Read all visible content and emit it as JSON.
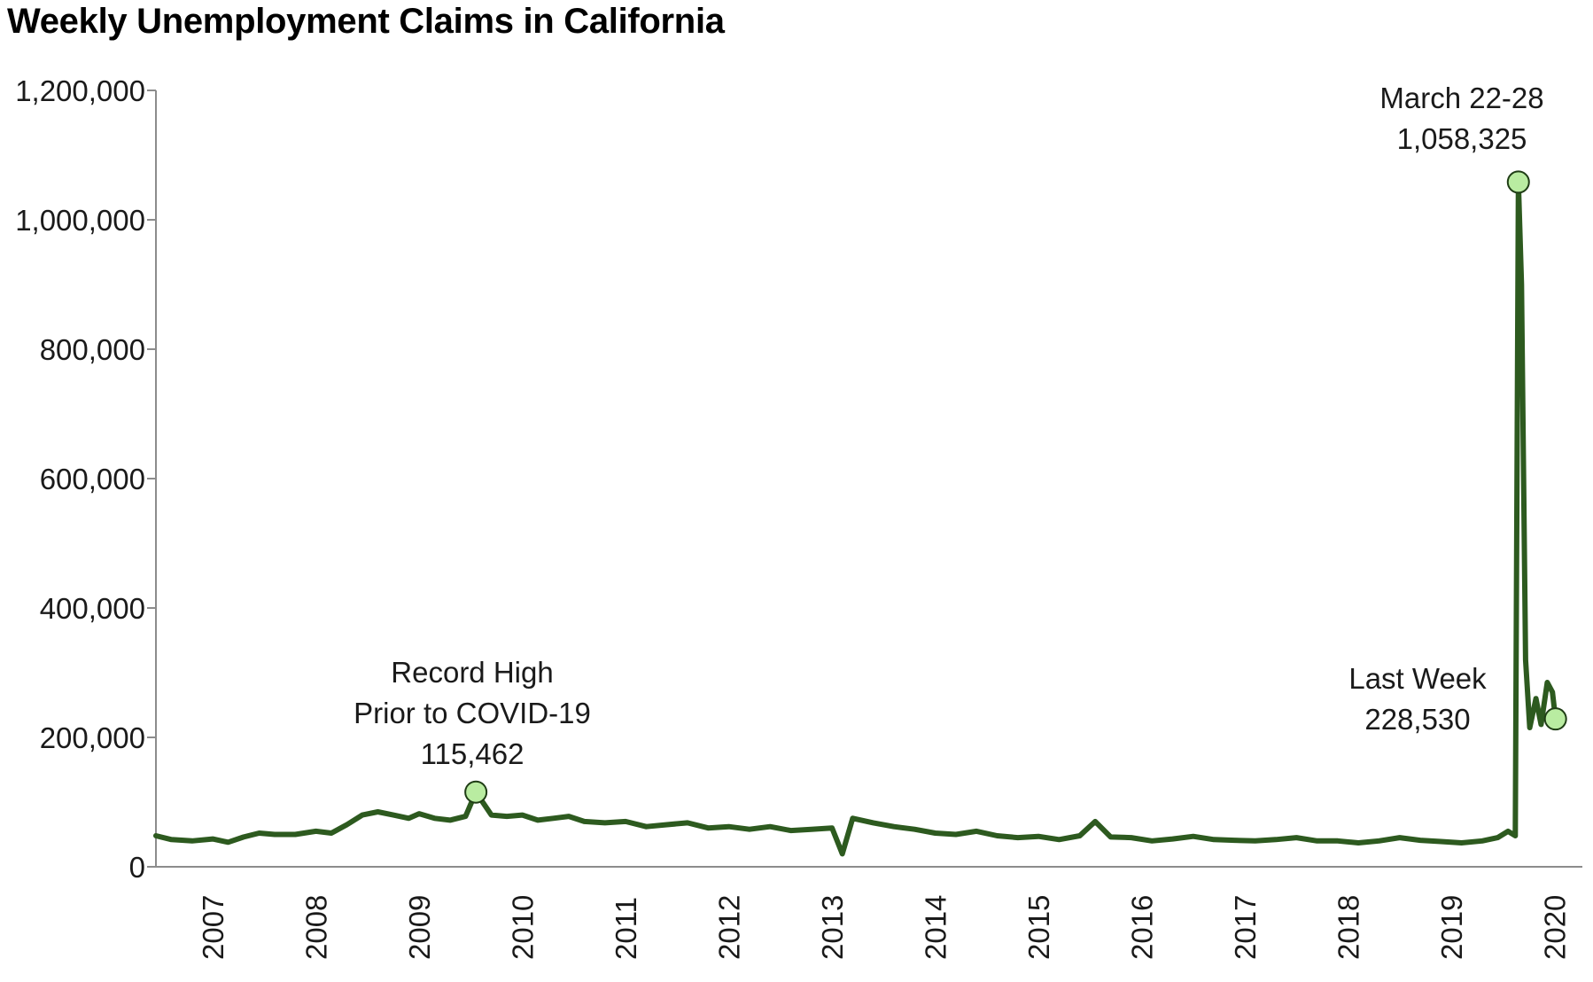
{
  "title": "Weekly Unemployment Claims in California",
  "colors": {
    "line": "#2d5a1f",
    "marker_fill": "#b9eca1",
    "marker_stroke": "#1f3d15",
    "axis": "#8c8c8c"
  },
  "chart_data": {
    "type": "line",
    "title": "Weekly Unemployment Claims in California",
    "xlabel": "",
    "ylabel": "",
    "ylim": [
      0,
      1200000
    ],
    "yticks": [
      0,
      200000,
      400000,
      600000,
      800000,
      1000000,
      1200000
    ],
    "ytick_labels": [
      "0",
      "200,000",
      "400,000",
      "600,000",
      "800,000",
      "1,000,000",
      "1,200,000"
    ],
    "xlim": [
      2006.45,
      2020.27
    ],
    "xticks": [
      2007,
      2008,
      2009,
      2010,
      2011,
      2012,
      2013,
      2014,
      2015,
      2016,
      2017,
      2018,
      2019,
      2020
    ],
    "xtick_labels": [
      "2007",
      "2008",
      "2009",
      "2010",
      "2011",
      "2012",
      "2013",
      "2014",
      "2015",
      "2016",
      "2017",
      "2018",
      "2019",
      "2020"
    ],
    "grid": false,
    "legend": "none",
    "series": [
      {
        "points": [
          [
            2006.45,
            48000
          ],
          [
            2006.6,
            42000
          ],
          [
            2006.8,
            40000
          ],
          [
            2007.0,
            43000
          ],
          [
            2007.15,
            38000
          ],
          [
            2007.3,
            46000
          ],
          [
            2007.45,
            52000
          ],
          [
            2007.6,
            50000
          ],
          [
            2007.8,
            50000
          ],
          [
            2008.0,
            55000
          ],
          [
            2008.15,
            52000
          ],
          [
            2008.3,
            65000
          ],
          [
            2008.45,
            80000
          ],
          [
            2008.6,
            85000
          ],
          [
            2008.75,
            80000
          ],
          [
            2008.9,
            75000
          ],
          [
            2009.0,
            82000
          ],
          [
            2009.15,
            75000
          ],
          [
            2009.3,
            72000
          ],
          [
            2009.45,
            78000
          ],
          [
            2009.55,
            115462
          ],
          [
            2009.7,
            80000
          ],
          [
            2009.85,
            78000
          ],
          [
            2010.0,
            80000
          ],
          [
            2010.15,
            72000
          ],
          [
            2010.3,
            75000
          ],
          [
            2010.45,
            78000
          ],
          [
            2010.6,
            70000
          ],
          [
            2010.8,
            68000
          ],
          [
            2011.0,
            70000
          ],
          [
            2011.2,
            62000
          ],
          [
            2011.4,
            65000
          ],
          [
            2011.6,
            68000
          ],
          [
            2011.8,
            60000
          ],
          [
            2012.0,
            62000
          ],
          [
            2012.2,
            58000
          ],
          [
            2012.4,
            62000
          ],
          [
            2012.6,
            56000
          ],
          [
            2012.8,
            58000
          ],
          [
            2013.0,
            60000
          ],
          [
            2013.1,
            20000
          ],
          [
            2013.2,
            75000
          ],
          [
            2013.4,
            68000
          ],
          [
            2013.6,
            62000
          ],
          [
            2013.8,
            58000
          ],
          [
            2014.0,
            52000
          ],
          [
            2014.2,
            50000
          ],
          [
            2014.4,
            55000
          ],
          [
            2014.6,
            48000
          ],
          [
            2014.8,
            45000
          ],
          [
            2015.0,
            47000
          ],
          [
            2015.2,
            42000
          ],
          [
            2015.4,
            48000
          ],
          [
            2015.55,
            70000
          ],
          [
            2015.7,
            46000
          ],
          [
            2015.9,
            45000
          ],
          [
            2016.1,
            40000
          ],
          [
            2016.3,
            43000
          ],
          [
            2016.5,
            47000
          ],
          [
            2016.7,
            42000
          ],
          [
            2016.9,
            41000
          ],
          [
            2017.1,
            40000
          ],
          [
            2017.3,
            42000
          ],
          [
            2017.5,
            45000
          ],
          [
            2017.7,
            40000
          ],
          [
            2017.9,
            40000
          ],
          [
            2018.1,
            37000
          ],
          [
            2018.3,
            40000
          ],
          [
            2018.5,
            45000
          ],
          [
            2018.7,
            41000
          ],
          [
            2018.9,
            39000
          ],
          [
            2019.1,
            37000
          ],
          [
            2019.3,
            40000
          ],
          [
            2019.45,
            45000
          ],
          [
            2019.55,
            55000
          ],
          [
            2019.62,
            48000
          ],
          [
            2019.65,
            1058325
          ],
          [
            2019.68,
            900000
          ],
          [
            2019.72,
            320000
          ],
          [
            2019.76,
            215000
          ],
          [
            2019.82,
            260000
          ],
          [
            2019.87,
            220000
          ],
          [
            2019.93,
            285000
          ],
          [
            2019.98,
            270000
          ],
          [
            2020.01,
            228530
          ]
        ]
      }
    ],
    "highlights": [
      {
        "x": 2009.55,
        "y": 115462
      },
      {
        "x": 2019.65,
        "y": 1058325
      },
      {
        "x": 2020.01,
        "y": 228530
      }
    ],
    "annotations": [
      {
        "lines": [
          "Record High",
          "Prior to COVID-19",
          "115,462"
        ]
      },
      {
        "lines": [
          "March 22-28",
          "1,058,325"
        ]
      },
      {
        "lines": [
          "Last Week",
          "228,530"
        ]
      }
    ]
  }
}
